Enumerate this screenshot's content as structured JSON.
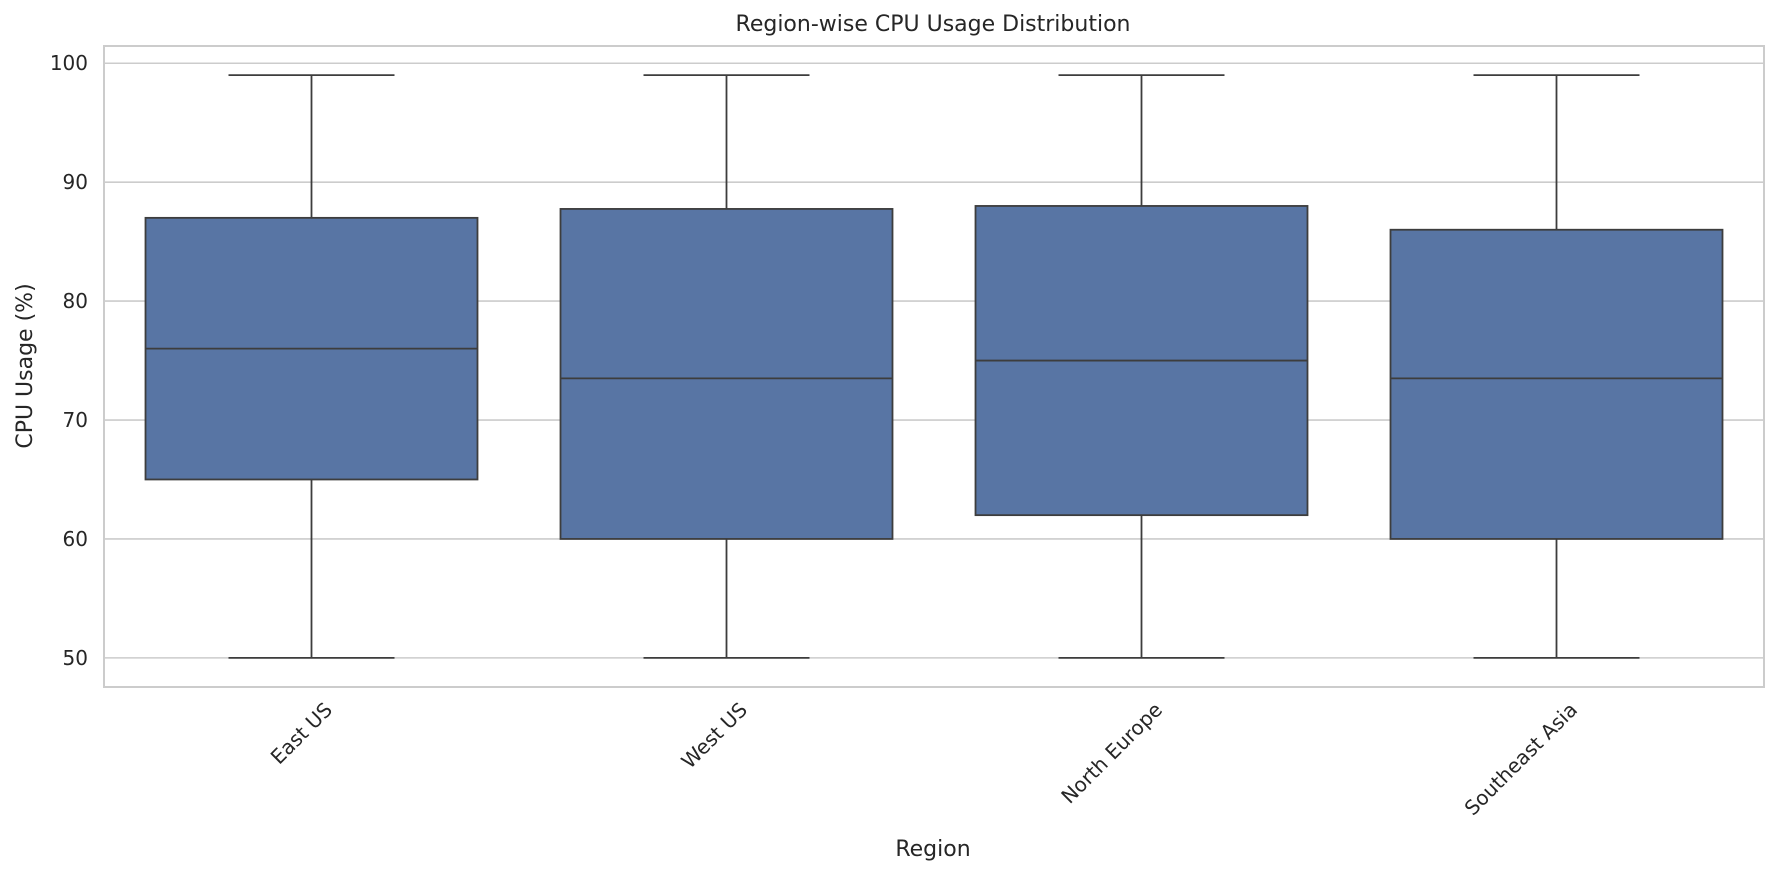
{
  "chart_data": {
    "type": "box",
    "title": "Region-wise CPU Usage Distribution",
    "xlabel": "Region",
    "ylabel": "CPU Usage (%)",
    "categories": [
      "East US",
      "West US",
      "North Europe",
      "Southeast Asia"
    ],
    "boxes": [
      {
        "category": "East US",
        "min": 50,
        "q1": 65,
        "median": 76,
        "q3": 87,
        "max": 99
      },
      {
        "category": "West US",
        "min": 50,
        "q1": 60,
        "median": 73.5,
        "q3": 87.75,
        "max": 99
      },
      {
        "category": "North Europe",
        "min": 50,
        "q1": 62,
        "median": 75,
        "q3": 88,
        "max": 99
      },
      {
        "category": "Southeast Asia",
        "min": 50,
        "q1": 60,
        "median": 73.5,
        "q3": 86,
        "max": 99
      }
    ],
    "yticks": [
      50,
      60,
      70,
      80,
      90,
      100
    ],
    "ylim": [
      47.55,
      101.45
    ],
    "grid": true,
    "x_tick_rotation_deg": -45,
    "colors": {
      "box_fill": "#5875a4",
      "line": "#3d3d3d",
      "grid": "#cccccc",
      "frame": "#cccccc",
      "text": "#262626"
    }
  }
}
